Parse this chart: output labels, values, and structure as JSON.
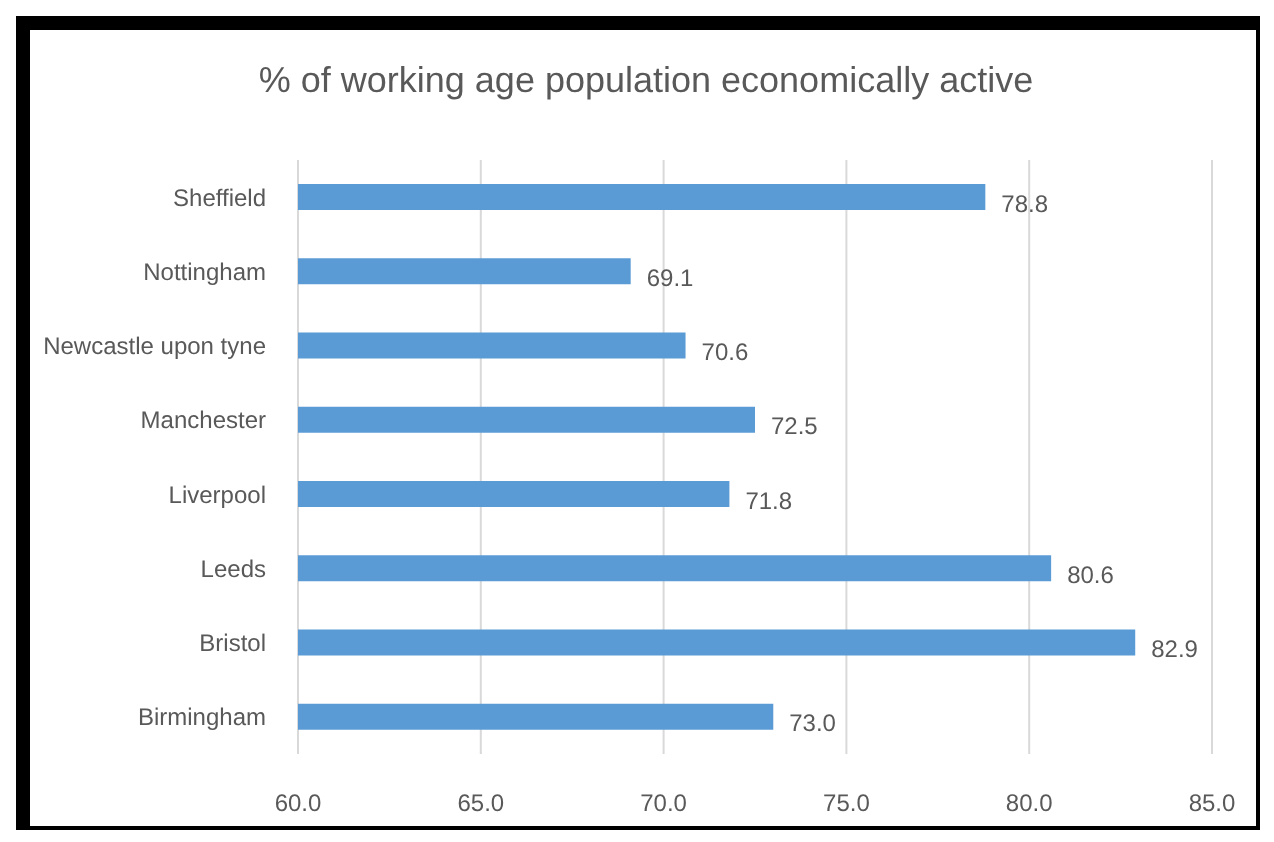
{
  "chart_data": {
    "type": "bar",
    "orientation": "horizontal",
    "title": "% of working age population economically active",
    "categories": [
      "Sheffield",
      "Nottingham",
      "Newcastle upon tyne",
      "Manchester",
      "Liverpool",
      "Leeds",
      "Bristol",
      "Birmingham"
    ],
    "values": [
      78.8,
      69.1,
      70.6,
      72.5,
      71.8,
      80.6,
      82.9,
      73.0
    ],
    "value_labels": [
      "78.8",
      "69.1",
      "70.6",
      "72.5",
      "71.8",
      "80.6",
      "82.9",
      "73.0"
    ],
    "color": "#5b9bd5",
    "xlim": [
      60,
      85
    ],
    "xticks": [
      {
        "value": 60,
        "label": "60.0"
      },
      {
        "value": 65,
        "label": "65.0"
      },
      {
        "value": 70,
        "label": "70.0"
      },
      {
        "value": 75,
        "label": "75.0"
      },
      {
        "value": 80,
        "label": "80.0"
      },
      {
        "value": 85,
        "label": "85.0"
      }
    ],
    "grid": "x"
  }
}
